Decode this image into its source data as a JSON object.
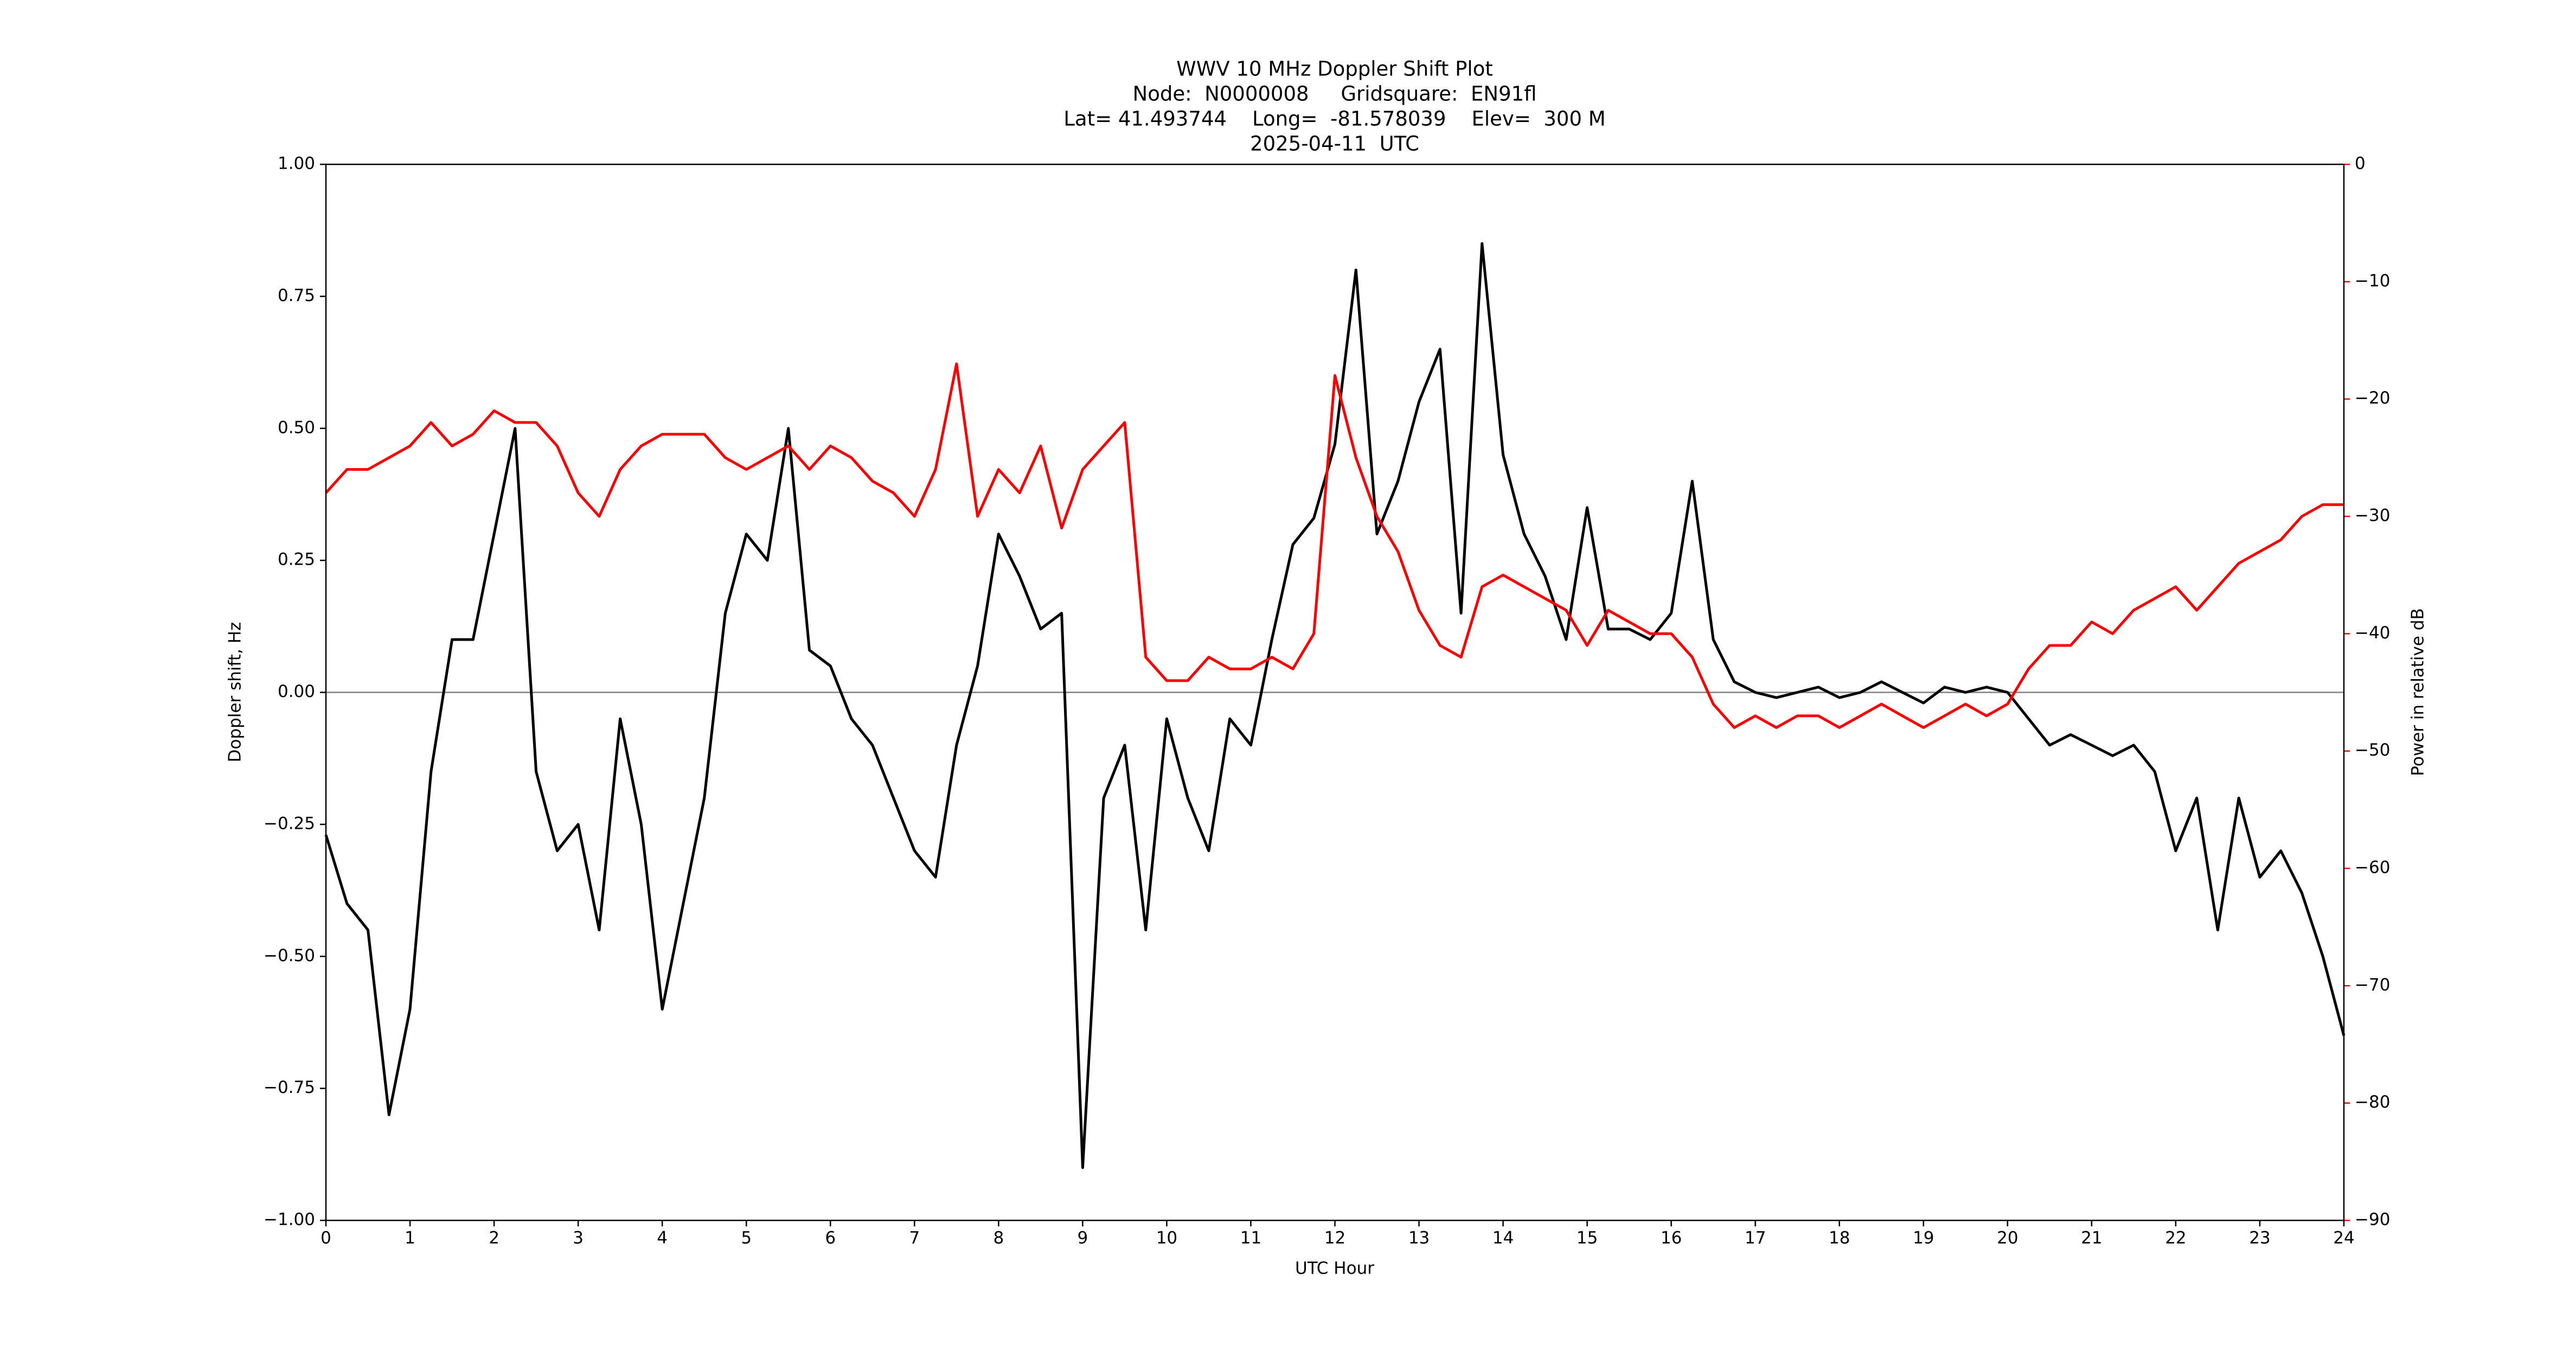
{
  "chart_data": {
    "type": "line",
    "title": "WWV 10 MHz Doppler Shift Plot",
    "subtitle_lines": [
      "Node:  N0000008     Gridsquare:  EN91fl",
      "Lat= 41.493744    Long=  -81.578039    Elev=  300 M",
      "2025-04-11  UTC"
    ],
    "xlabel": "UTC Hour",
    "ylabel": "Doppler shift, Hz",
    "y2label": "Power in relative dB",
    "xlim": [
      0,
      24
    ],
    "xticks": [
      0,
      1,
      2,
      3,
      4,
      5,
      6,
      7,
      8,
      9,
      10,
      11,
      12,
      13,
      14,
      15,
      16,
      17,
      18,
      19,
      20,
      21,
      22,
      23,
      24
    ],
    "ylim": [
      -1,
      1
    ],
    "yticks": [
      {
        "value": -1,
        "label": "−1.00"
      },
      {
        "value": -0.75,
        "label": "−0.75"
      },
      {
        "value": -0.5,
        "label": "−0.50"
      },
      {
        "value": -0.25,
        "label": "−0.25"
      },
      {
        "value": 0,
        "label": "0.00"
      },
      {
        "value": 0.25,
        "label": "0.25"
      },
      {
        "value": 0.5,
        "label": "0.50"
      },
      {
        "value": 0.75,
        "label": "0.75"
      },
      {
        "value": 1,
        "label": "1.00"
      }
    ],
    "y2lim": [
      -90,
      0
    ],
    "y2ticks": [
      {
        "value": -90,
        "label": "−90"
      },
      {
        "value": -80,
        "label": "−80"
      },
      {
        "value": -70,
        "label": "−70"
      },
      {
        "value": -60,
        "label": "−60"
      },
      {
        "value": -50,
        "label": "−50"
      },
      {
        "value": -40,
        "label": "−40"
      },
      {
        "value": -30,
        "label": "−30"
      },
      {
        "value": -20,
        "label": "−20"
      },
      {
        "value": -10,
        "label": "−10"
      },
      0
    ],
    "y2color": "#ff0000",
    "reference_line": 0,
    "x": [
      0,
      0.25,
      0.5,
      0.75,
      1,
      1.25,
      1.5,
      1.75,
      2,
      2.25,
      2.5,
      2.75,
      3,
      3.25,
      3.5,
      3.75,
      4,
      4.25,
      4.5,
      4.75,
      5,
      5.25,
      5.5,
      5.75,
      6,
      6.25,
      6.5,
      6.75,
      7,
      7.25,
      7.5,
      7.75,
      8,
      8.25,
      8.5,
      8.75,
      9,
      9.25,
      9.5,
      9.75,
      10,
      10.25,
      10.5,
      10.75,
      11,
      11.25,
      11.5,
      11.75,
      12,
      12.25,
      12.5,
      12.75,
      13,
      13.25,
      13.5,
      13.75,
      14,
      14.25,
      14.5,
      14.75,
      15,
      15.25,
      15.5,
      15.75,
      16,
      16.25,
      16.5,
      16.75,
      17,
      17.25,
      17.5,
      17.75,
      18,
      18.25,
      18.5,
      18.75,
      19,
      19.25,
      19.5,
      19.75,
      20,
      20.25,
      20.5,
      20.75,
      21,
      21.25,
      21.5,
      21.75,
      22,
      22.25,
      22.5,
      22.75,
      23,
      23.25,
      23.5,
      23.75,
      24
    ],
    "series": [
      {
        "color": "#000000",
        "values": [
          -0.27,
          -0.4,
          -0.45,
          -0.8,
          -0.6,
          -0.15,
          0.1,
          0.1,
          0.3,
          0.5,
          -0.15,
          -0.3,
          -0.25,
          -0.45,
          -0.05,
          -0.25,
          -0.6,
          -0.4,
          -0.2,
          0.15,
          0.3,
          0.25,
          0.5,
          0.08,
          0.05,
          -0.05,
          -0.1,
          -0.2,
          -0.3,
          -0.35,
          -0.1,
          0.05,
          0.3,
          0.22,
          0.12,
          0.15,
          -0.9,
          -0.2,
          -0.1,
          -0.45,
          -0.05,
          -0.2,
          -0.3,
          -0.05,
          -0.1,
          0.1,
          0.28,
          0.33,
          0.47,
          0.8,
          0.3,
          0.4,
          0.55,
          0.65,
          0.15,
          0.85,
          0.45,
          0.3,
          0.22,
          0.1,
          0.35,
          0.12,
          0.12,
          0.1,
          0.15,
          0.4,
          0.1,
          0.02,
          0,
          -0.01,
          0,
          0.01,
          -0.01,
          0,
          0.02,
          0,
          -0.02,
          0.01,
          0,
          0.01,
          0,
          -0.05,
          -0.1,
          -0.08,
          -0.1,
          -0.12,
          -0.1,
          -0.15,
          -0.3,
          -0.2,
          -0.45,
          -0.2,
          -0.35,
          -0.3,
          -0.38,
          -0.5,
          -0.65
        ]
      },
      {
        "color": "#ff0000",
        "axis": "y2",
        "values": [
          -28,
          -26,
          -26,
          -25,
          -24,
          -22,
          -24,
          -23,
          -21,
          -22,
          -22,
          -24,
          -28,
          -30,
          -26,
          -24,
          -23,
          -23,
          -23,
          -25,
          -26,
          -25,
          -24,
          -26,
          -24,
          -25,
          -27,
          -28,
          -30,
          -26,
          -17,
          -30,
          -26,
          -28,
          -24,
          -31,
          -26,
          -24,
          -22,
          -42,
          -44,
          -44,
          -42,
          -43,
          -43,
          -42,
          -43,
          -40,
          -18,
          -25,
          -30,
          -33,
          -38,
          -41,
          -42,
          -36,
          -35,
          -36,
          -37,
          -38,
          -41,
          -38,
          -39,
          -40,
          -40,
          -42,
          -46,
          -48,
          -47,
          -48,
          -47,
          -47,
          -48,
          -47,
          -46,
          -47,
          -48,
          -47,
          -46,
          -47,
          -46,
          -43,
          -41,
          -41,
          -39,
          -40,
          -38,
          -37,
          -36,
          -38,
          -36,
          -34,
          -33,
          -32,
          -30,
          -29,
          -29
        ]
      }
    ]
  }
}
